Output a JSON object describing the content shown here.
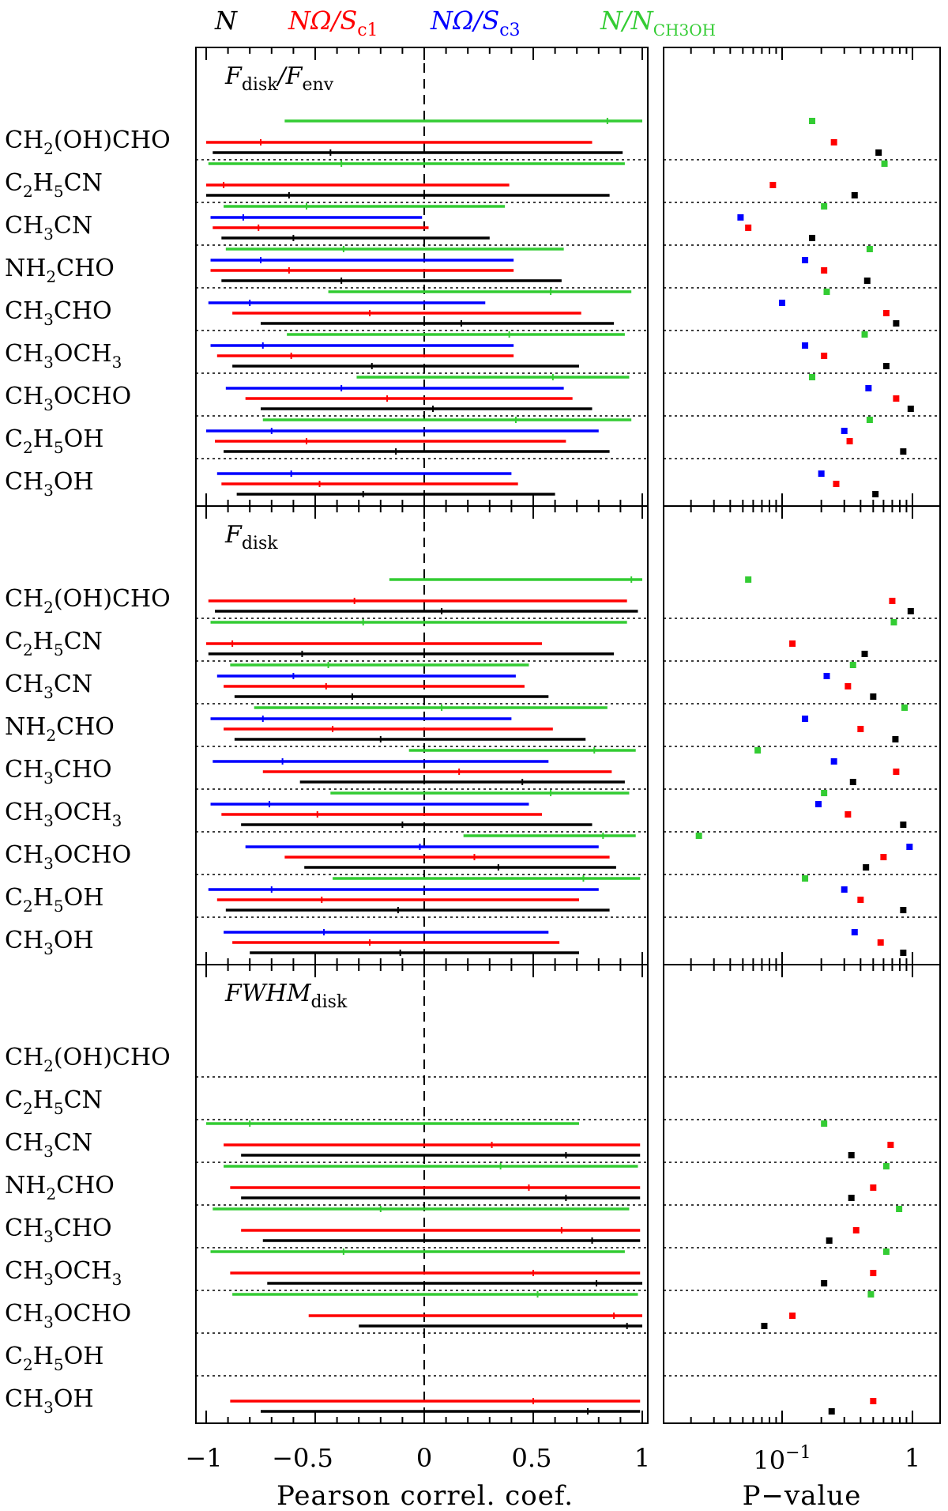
{
  "chart_data": {
    "type": "errorbar-scatter",
    "legend": [
      {
        "id": "N",
        "color": "#000000",
        "main": "N",
        "sub": ""
      },
      {
        "id": "NOmegaSc1",
        "color": "#ff0000",
        "main": "NΩ/S",
        "sub": "c1"
      },
      {
        "id": "NOmegaSc3",
        "color": "#0000ff",
        "main": "NΩ/S",
        "sub": "c3"
      },
      {
        "id": "NNCH3OH",
        "color": "#33cc33",
        "main": "N/N",
        "sub": "CH3OH"
      }
    ],
    "xlabel_left": "Pearson correl. coef.",
    "xlabel_right": "P−value",
    "xticks_left": [
      "−1",
      "−0.5",
      "0",
      "0.5",
      "1"
    ],
    "xticks_right": {
      "major_label": "10",
      "major_exp": "−1",
      "one": "1"
    },
    "xlim_left": [
      -1.05,
      1.05
    ],
    "xlim_right_log10": [
      -1.85,
      0.12
    ],
    "molecules": [
      {
        "label": "CH2(OH)CHO",
        "parts": [
          [
            "CH",
            ""
          ],
          [
            "2",
            "sub"
          ],
          [
            "(OH)CHO",
            ""
          ]
        ]
      },
      {
        "label": "C2H5CN",
        "parts": [
          [
            "C",
            ""
          ],
          [
            "2",
            "sub"
          ],
          [
            "H",
            ""
          ],
          [
            "5",
            "sub"
          ],
          [
            "CN",
            ""
          ]
        ]
      },
      {
        "label": "CH3CN",
        "parts": [
          [
            "CH",
            ""
          ],
          [
            "3",
            "sub"
          ],
          [
            "CN",
            ""
          ]
        ]
      },
      {
        "label": "NH2CHO",
        "parts": [
          [
            "NH",
            ""
          ],
          [
            "2",
            "sub"
          ],
          [
            "CHO",
            ""
          ]
        ]
      },
      {
        "label": "CH3CHO",
        "parts": [
          [
            "CH",
            ""
          ],
          [
            "3",
            "sub"
          ],
          [
            "CHO",
            ""
          ]
        ]
      },
      {
        "label": "CH3OCH3",
        "parts": [
          [
            "CH",
            ""
          ],
          [
            "3",
            "sub"
          ],
          [
            "OCH",
            ""
          ],
          [
            "3",
            "sub"
          ]
        ]
      },
      {
        "label": "CH3OCHO",
        "parts": [
          [
            "CH",
            ""
          ],
          [
            "3",
            "sub"
          ],
          [
            "OCHO",
            ""
          ]
        ]
      },
      {
        "label": "C2H5OH",
        "parts": [
          [
            "C",
            ""
          ],
          [
            "2",
            "sub"
          ],
          [
            "H",
            ""
          ],
          [
            "5",
            "sub"
          ],
          [
            "OH",
            ""
          ]
        ]
      },
      {
        "label": "CH3OH",
        "parts": [
          [
            "CH",
            ""
          ],
          [
            "3",
            "sub"
          ],
          [
            "OH",
            ""
          ]
        ]
      }
    ],
    "panels": [
      {
        "label_main": "F",
        "label_sub": "disk",
        "label_extra": "/F",
        "label_extra_sub": "env",
        "rows": [
          [
            {
              "s": "N",
              "lo": -0.97,
              "hi": 0.91,
              "c": -0.43,
              "p": 0.55
            },
            {
              "s": "NOmegaSc1",
              "lo": -1.0,
              "hi": 0.77,
              "c": -0.75,
              "p": 0.25
            },
            {
              "s": "NNCH3OH",
              "lo": -0.64,
              "hi": 1.0,
              "c": 0.84,
              "p": 0.17
            }
          ],
          [
            {
              "s": "N",
              "lo": -1.0,
              "hi": 0.85,
              "c": -0.62,
              "p": 0.36
            },
            {
              "s": "NOmegaSc1",
              "lo": -1.0,
              "hi": 0.39,
              "c": -0.92,
              "p": 0.085
            },
            {
              "s": "NNCH3OH",
              "lo": -0.99,
              "hi": 0.92,
              "c": -0.38,
              "p": 0.61
            }
          ],
          [
            {
              "s": "N",
              "lo": -0.93,
              "hi": 0.3,
              "c": -0.6,
              "p": 0.17
            },
            {
              "s": "NOmegaSc1",
              "lo": -0.97,
              "hi": 0.02,
              "c": -0.76,
              "p": 0.055
            },
            {
              "s": "NOmegaSc3",
              "lo": -0.98,
              "hi": -0.01,
              "c": -0.83,
              "p": 0.048
            },
            {
              "s": "NNCH3OH",
              "lo": -0.92,
              "hi": 0.37,
              "c": -0.54,
              "p": 0.21
            }
          ],
          [
            {
              "s": "N",
              "lo": -0.93,
              "hi": 0.63,
              "c": -0.38,
              "p": 0.45
            },
            {
              "s": "NOmegaSc1",
              "lo": -0.98,
              "hi": 0.41,
              "c": -0.62,
              "p": 0.21
            },
            {
              "s": "NOmegaSc3",
              "lo": -0.98,
              "hi": 0.41,
              "c": -0.75,
              "p": 0.15
            },
            {
              "s": "NNCH3OH",
              "lo": -0.91,
              "hi": 0.64,
              "c": -0.37,
              "p": 0.47
            }
          ],
          [
            {
              "s": "N",
              "lo": -0.75,
              "hi": 0.87,
              "c": 0.17,
              "p": 0.75
            },
            {
              "s": "NOmegaSc1",
              "lo": -0.88,
              "hi": 0.72,
              "c": -0.25,
              "p": 0.63
            },
            {
              "s": "NOmegaSc3",
              "lo": -0.99,
              "hi": 0.28,
              "c": -0.8,
              "p": 0.1
            },
            {
              "s": "NNCH3OH",
              "lo": -0.44,
              "hi": 0.95,
              "c": 0.58,
              "p": 0.22
            }
          ],
          [
            {
              "s": "N",
              "lo": -0.88,
              "hi": 0.71,
              "c": -0.24,
              "p": 0.63
            },
            {
              "s": "NOmegaSc1",
              "lo": -0.95,
              "hi": 0.41,
              "c": -0.61,
              "p": 0.21
            },
            {
              "s": "NOmegaSc3",
              "lo": -0.98,
              "hi": 0.41,
              "c": -0.74,
              "p": 0.15
            },
            {
              "s": "NNCH3OH",
              "lo": -0.63,
              "hi": 0.92,
              "c": 0.39,
              "p": 0.43
            }
          ],
          [
            {
              "s": "N",
              "lo": -0.75,
              "hi": 0.77,
              "c": 0.04,
              "p": 0.97
            },
            {
              "s": "NOmegaSc1",
              "lo": -0.82,
              "hi": 0.68,
              "c": -0.17,
              "p": 0.75
            },
            {
              "s": "NOmegaSc3",
              "lo": -0.91,
              "hi": 0.64,
              "c": -0.38,
              "p": 0.46
            },
            {
              "s": "NNCH3OH",
              "lo": -0.31,
              "hi": 0.94,
              "c": 0.59,
              "p": 0.17
            }
          ],
          [
            {
              "s": "N",
              "lo": -0.92,
              "hi": 0.85,
              "c": -0.13,
              "p": 0.85
            },
            {
              "s": "NOmegaSc1",
              "lo": -0.96,
              "hi": 0.65,
              "c": -0.54,
              "p": 0.33
            },
            {
              "s": "NOmegaSc3",
              "lo": -1.0,
              "hi": 0.8,
              "c": -0.7,
              "p": 0.3
            },
            {
              "s": "NNCH3OH",
              "lo": -0.74,
              "hi": 0.95,
              "c": 0.42,
              "p": 0.47
            }
          ],
          [
            {
              "s": "N",
              "lo": -0.86,
              "hi": 0.6,
              "c": -0.28,
              "p": 0.52
            },
            {
              "s": "NOmegaSc1",
              "lo": -0.93,
              "hi": 0.43,
              "c": -0.48,
              "p": 0.26
            },
            {
              "s": "NOmegaSc3",
              "lo": -0.95,
              "hi": 0.4,
              "c": -0.61,
              "p": 0.2
            }
          ]
        ]
      },
      {
        "label_main": "F",
        "label_sub": "disk",
        "label_extra": "",
        "label_extra_sub": "",
        "rows": [
          [
            {
              "s": "N",
              "lo": -0.96,
              "hi": 0.98,
              "c": 0.08,
              "p": 0.97
            },
            {
              "s": "NOmegaSc1",
              "lo": -0.99,
              "hi": 0.93,
              "c": -0.32,
              "p": 0.7
            },
            {
              "s": "NNCH3OH",
              "lo": -0.16,
              "hi": 1.0,
              "c": 0.95,
              "p": 0.055
            }
          ],
          [
            {
              "s": "N",
              "lo": -0.99,
              "hi": 0.87,
              "c": -0.56,
              "p": 0.43
            },
            {
              "s": "NOmegaSc1",
              "lo": -1.0,
              "hi": 0.54,
              "c": -0.88,
              "p": 0.12
            },
            {
              "s": "NNCH3OH",
              "lo": -0.98,
              "hi": 0.93,
              "c": -0.28,
              "p": 0.72
            }
          ],
          [
            {
              "s": "N",
              "lo": -0.87,
              "hi": 0.57,
              "c": -0.33,
              "p": 0.5
            },
            {
              "s": "NOmegaSc1",
              "lo": -0.92,
              "hi": 0.46,
              "c": -0.45,
              "p": 0.32
            },
            {
              "s": "NOmegaSc3",
              "lo": -0.95,
              "hi": 0.42,
              "c": -0.6,
              "p": 0.22
            },
            {
              "s": "NNCH3OH",
              "lo": -0.89,
              "hi": 0.48,
              "c": -0.44,
              "p": 0.35
            }
          ],
          [
            {
              "s": "N",
              "lo": -0.87,
              "hi": 0.74,
              "c": -0.2,
              "p": 0.74
            },
            {
              "s": "NOmegaSc1",
              "lo": -0.92,
              "hi": 0.59,
              "c": -0.42,
              "p": 0.4
            },
            {
              "s": "NOmegaSc3",
              "lo": -0.98,
              "hi": 0.4,
              "c": -0.74,
              "p": 0.15
            },
            {
              "s": "NNCH3OH",
              "lo": -0.78,
              "hi": 0.84,
              "c": 0.08,
              "p": 0.87
            }
          ],
          [
            {
              "s": "N",
              "lo": -0.57,
              "hi": 0.92,
              "c": 0.45,
              "p": 0.35
            },
            {
              "s": "NOmegaSc1",
              "lo": -0.74,
              "hi": 0.86,
              "c": 0.16,
              "p": 0.75
            },
            {
              "s": "NOmegaSc3",
              "lo": -0.97,
              "hi": 0.57,
              "c": -0.65,
              "p": 0.25
            },
            {
              "s": "NNCH3OH",
              "lo": -0.07,
              "hi": 0.97,
              "c": 0.78,
              "p": 0.065
            }
          ],
          [
            {
              "s": "N",
              "lo": -0.84,
              "hi": 0.77,
              "c": -0.1,
              "p": 0.85
            },
            {
              "s": "NOmegaSc1",
              "lo": -0.93,
              "hi": 0.54,
              "c": -0.49,
              "p": 0.32
            },
            {
              "s": "NOmegaSc3",
              "lo": -0.98,
              "hi": 0.48,
              "c": -0.71,
              "p": 0.19
            },
            {
              "s": "NNCH3OH",
              "lo": -0.43,
              "hi": 0.94,
              "c": 0.58,
              "p": 0.21
            }
          ],
          [
            {
              "s": "N",
              "lo": -0.55,
              "hi": 0.88,
              "c": 0.34,
              "p": 0.44
            },
            {
              "s": "NOmegaSc1",
              "lo": -0.64,
              "hi": 0.85,
              "c": 0.23,
              "p": 0.6
            },
            {
              "s": "NOmegaSc3",
              "lo": -0.82,
              "hi": 0.8,
              "c": -0.02,
              "p": 0.95
            },
            {
              "s": "NNCH3OH",
              "lo": 0.18,
              "hi": 0.97,
              "c": 0.82,
              "p": 0.023
            }
          ],
          [
            {
              "s": "N",
              "lo": -0.91,
              "hi": 0.85,
              "c": -0.12,
              "p": 0.85
            },
            {
              "s": "NOmegaSc1",
              "lo": -0.95,
              "hi": 0.71,
              "c": -0.47,
              "p": 0.4
            },
            {
              "s": "NOmegaSc3",
              "lo": -0.99,
              "hi": 0.8,
              "c": -0.7,
              "p": 0.3
            },
            {
              "s": "NNCH3OH",
              "lo": -0.42,
              "hi": 0.99,
              "c": 0.73,
              "p": 0.15
            }
          ],
          [
            {
              "s": "N",
              "lo": -0.8,
              "hi": 0.71,
              "c": -0.11,
              "p": 0.85
            },
            {
              "s": "NOmegaSc1",
              "lo": -0.88,
              "hi": 0.62,
              "c": -0.25,
              "p": 0.57
            },
            {
              "s": "NOmegaSc3",
              "lo": -0.92,
              "hi": 0.57,
              "c": -0.46,
              "p": 0.36
            }
          ]
        ]
      },
      {
        "label_main": "FWHM",
        "label_sub": "disk",
        "label_extra": "",
        "label_extra_sub": "",
        "rows": [
          [],
          [],
          [
            {
              "s": "N",
              "lo": -0.84,
              "hi": 0.99,
              "c": 0.65,
              "p": 0.34
            },
            {
              "s": "NOmegaSc1",
              "lo": -0.92,
              "hi": 0.99,
              "c": 0.31,
              "p": 0.68
            },
            {
              "s": "NNCH3OH",
              "lo": -1.0,
              "hi": 0.71,
              "c": -0.8,
              "p": 0.21
            }
          ],
          [
            {
              "s": "N",
              "lo": -0.84,
              "hi": 0.99,
              "c": 0.65,
              "p": 0.34
            },
            {
              "s": "NOmegaSc1",
              "lo": -0.89,
              "hi": 0.99,
              "c": 0.48,
              "p": 0.5
            },
            {
              "s": "NNCH3OH",
              "lo": -0.92,
              "hi": 0.98,
              "c": 0.35,
              "p": 0.63
            }
          ],
          [
            {
              "s": "N",
              "lo": -0.74,
              "hi": 0.99,
              "c": 0.77,
              "p": 0.23
            },
            {
              "s": "NOmegaSc1",
              "lo": -0.84,
              "hi": 0.99,
              "c": 0.63,
              "p": 0.37
            },
            {
              "s": "NNCH3OH",
              "lo": -0.97,
              "hi": 0.94,
              "c": -0.2,
              "p": 0.79
            }
          ],
          [
            {
              "s": "N",
              "lo": -0.72,
              "hi": 1.0,
              "c": 0.79,
              "p": 0.21
            },
            {
              "s": "NOmegaSc1",
              "lo": -0.89,
              "hi": 0.99,
              "c": 0.5,
              "p": 0.5
            },
            {
              "s": "NNCH3OH",
              "lo": -0.98,
              "hi": 0.92,
              "c": -0.37,
              "p": 0.63
            }
          ],
          [
            {
              "s": "N",
              "lo": -0.3,
              "hi": 1.0,
              "c": 0.93,
              "p": 0.073
            },
            {
              "s": "NOmegaSc1",
              "lo": -0.53,
              "hi": 1.0,
              "c": 0.87,
              "p": 0.12
            },
            {
              "s": "NNCH3OH",
              "lo": -0.88,
              "hi": 0.98,
              "c": 0.52,
              "p": 0.48
            }
          ],
          [],
          [
            {
              "s": "N",
              "lo": -0.75,
              "hi": 0.99,
              "c": 0.75,
              "p": 0.24
            },
            {
              "s": "NOmegaSc1",
              "lo": -0.89,
              "hi": 0.99,
              "c": 0.5,
              "p": 0.5
            }
          ]
        ]
      }
    ]
  }
}
